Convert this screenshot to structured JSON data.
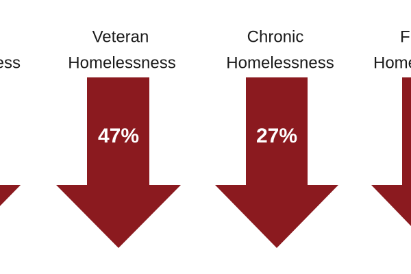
{
  "items": [
    {
      "label_lines": [
        "ess"
      ]
    },
    {
      "label_lines": [
        "Veteran",
        "Homelessness"
      ],
      "value": "47%"
    },
    {
      "label_lines": [
        "Chronic",
        "Homelessness"
      ],
      "value": "27%"
    },
    {
      "label_lines": [
        "F",
        "Home"
      ]
    }
  ]
}
